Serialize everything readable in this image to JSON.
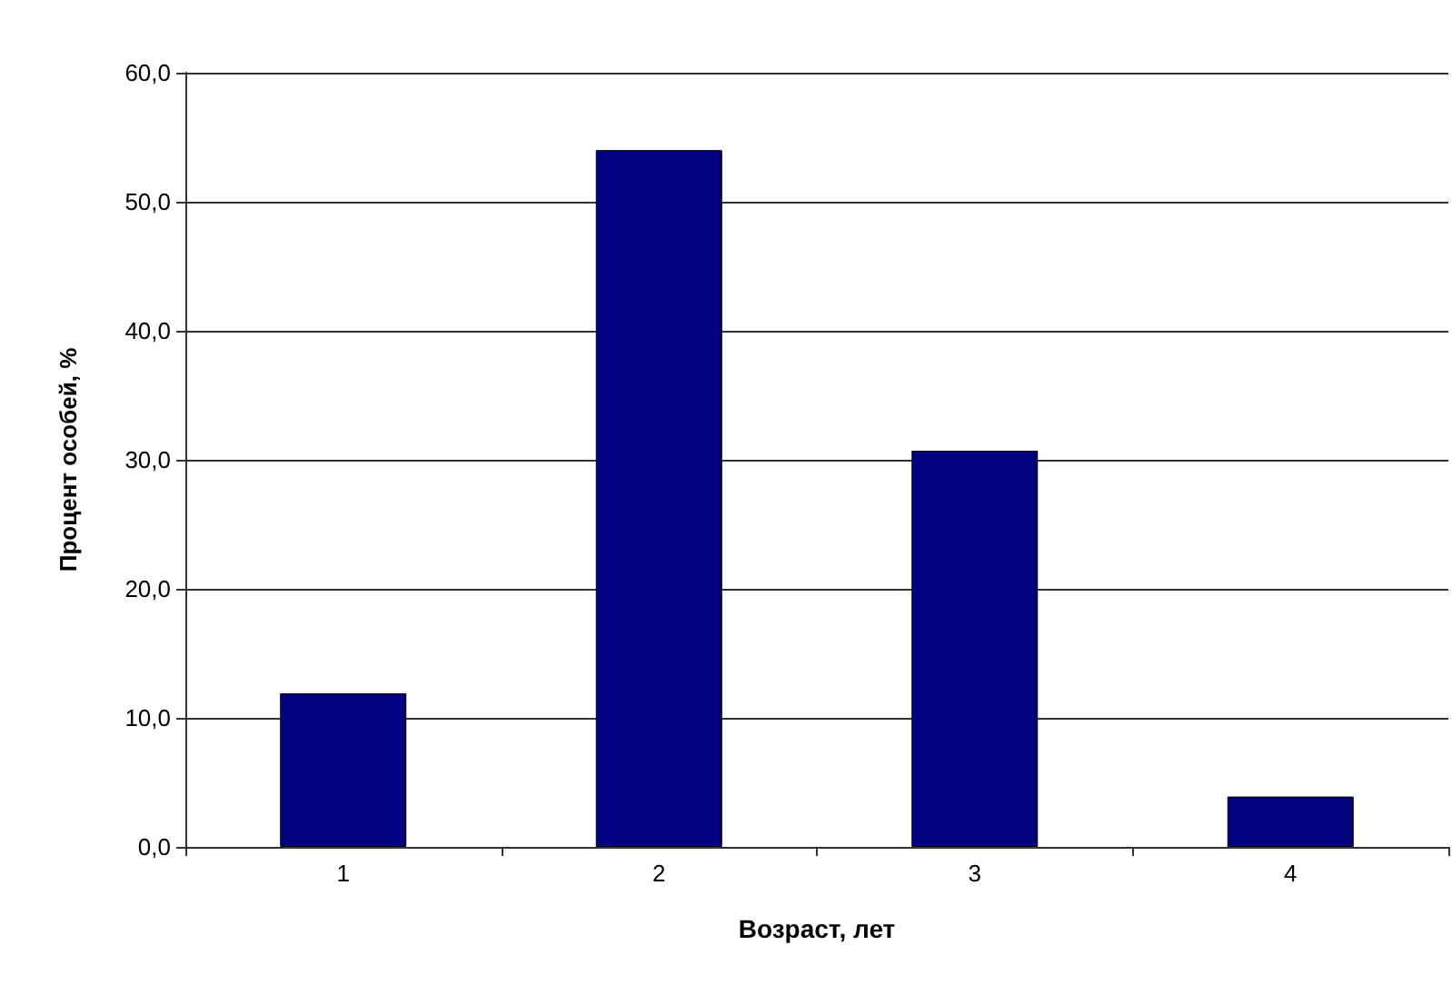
{
  "chart_data": {
    "type": "bar",
    "xlabel": "Возраст, лет",
    "ylabel": "Процент особей, %",
    "categories": [
      "1",
      "2",
      "3",
      "4"
    ],
    "values": [
      11.9,
      54.0,
      30.7,
      3.9
    ],
    "color": "#000080",
    "ylim": [
      0,
      60
    ],
    "yticks": [
      {
        "value": 0,
        "label": "0,0"
      },
      {
        "value": 10,
        "label": "10,0"
      },
      {
        "value": 20,
        "label": "20,0"
      },
      {
        "value": 30,
        "label": "30,0"
      },
      {
        "value": 40,
        "label": "40,0"
      },
      {
        "value": 50,
        "label": "50,0"
      },
      {
        "value": 60,
        "label": "60,0"
      }
    ],
    "grid": "y"
  }
}
